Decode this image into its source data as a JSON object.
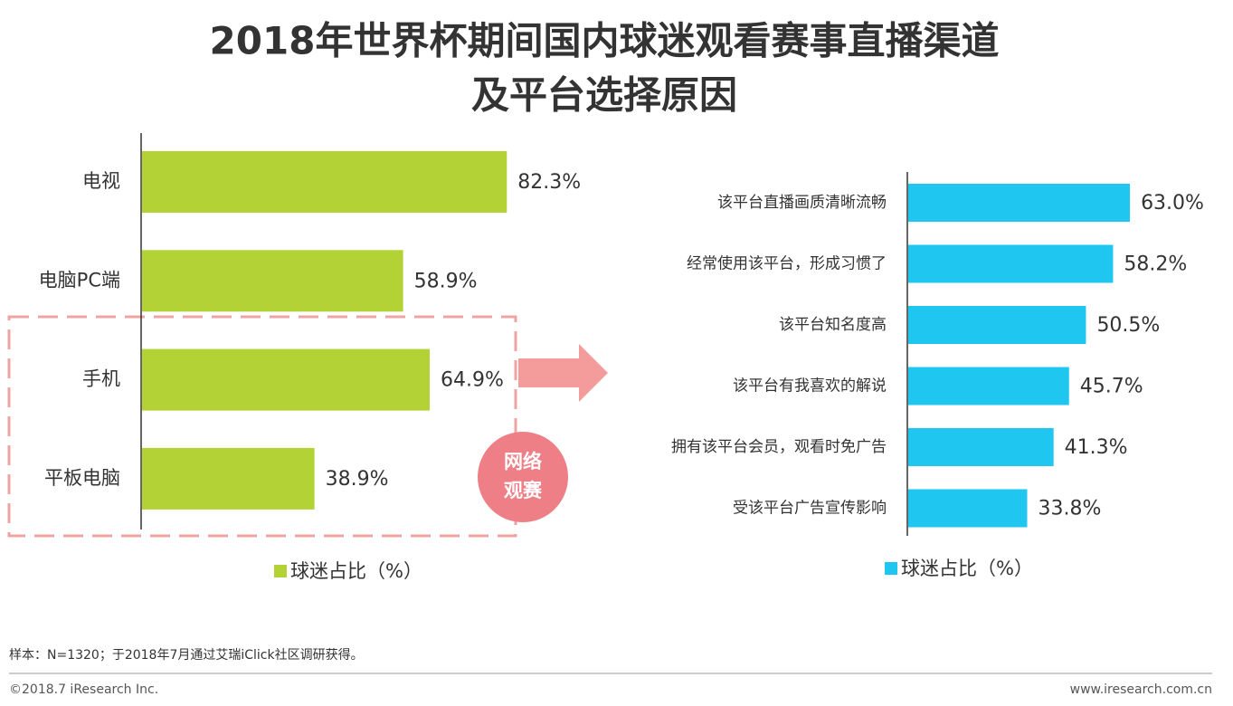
{
  "title": [
    "2018年世界杯期间国内球迷观看赛事直播渠道",
    "及平台选择原因"
  ],
  "chart_data": [
    {
      "type": "hbar",
      "categories": [
        "电视",
        "电脑PC端",
        "手机",
        "平板电脑"
      ],
      "series": [
        {
          "name": "球迷占比（%）",
          "color": "#b3d235",
          "values": [
            82.3,
            58.9,
            64.9,
            38.9
          ],
          "value_labels": [
            "82.3%",
            "58.9%",
            "64.9%",
            "38.9%"
          ]
        }
      ],
      "annotations": [
        "网络",
        "观赛"
      ]
    },
    {
      "type": "hbar",
      "categories": [
        "该平台直播画质清晰流畅",
        "经常使用该平台，形成习惯了",
        "该平台知名度高",
        "该平台有我喜欢的解说",
        "拥有该平台会员，观看时免广告",
        "受该平台广告宣传影响"
      ],
      "series": [
        {
          "name": "球迷占比（%）",
          "color": "#1fc7f0",
          "values": [
            63.0,
            58.2,
            50.5,
            45.7,
            41.3,
            33.8
          ],
          "value_labels": [
            "63.0%",
            "58.2%",
            "50.5%",
            "45.7%",
            "41.3%",
            "33.8%"
          ]
        }
      ]
    }
  ],
  "footer": {
    "note": "样本：N=1320；于2018年7月通过艾瑞iClick社区调研获得。",
    "copyright": "©2018.7 iResearch Inc.",
    "website": "www.iresearch.com.cn"
  }
}
